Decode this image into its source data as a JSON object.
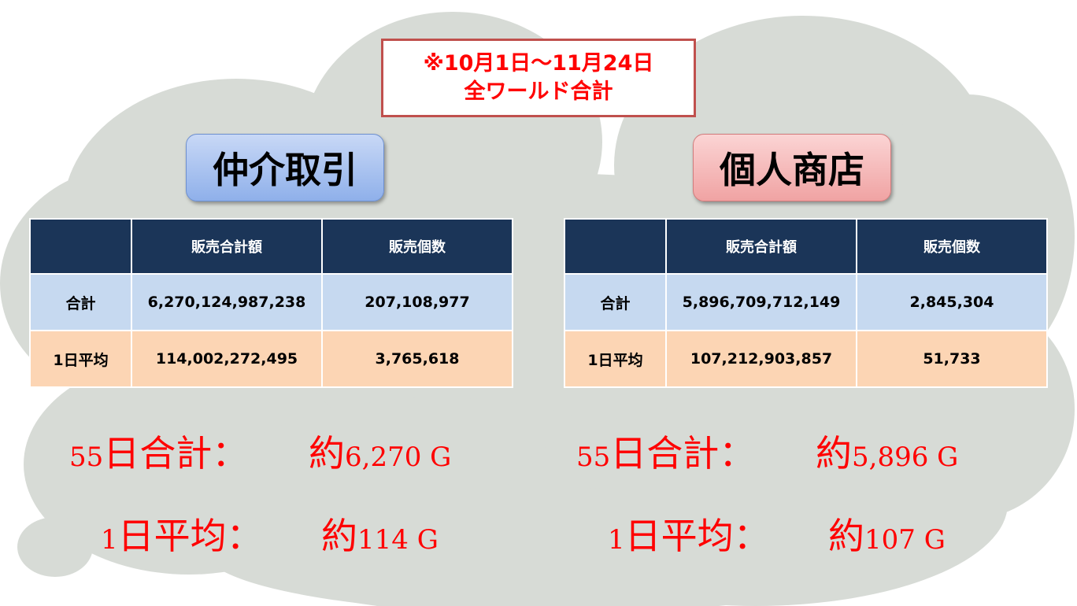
{
  "banner": {
    "line1": "※10月1日～11月24日",
    "line2": "全ワールド合計"
  },
  "columns": {
    "blank": "",
    "amount": "販売合計額",
    "count": "販売個数"
  },
  "rows": {
    "total": "合計",
    "daily": "1日平均"
  },
  "left": {
    "title": "仲介取引",
    "total_amount": "6,270,124,987,238",
    "total_count": "207,108,977",
    "daily_amount": "114,002,272,495",
    "daily_count": "3,765,618",
    "note1_prefix": "55",
    "note1_label": "日合計：",
    "note1_approx": "約",
    "note1_value": "6,270 G",
    "note2_prefix": "1",
    "note2_label": "日平均：",
    "note2_approx": "約",
    "note2_value": "114 G"
  },
  "right": {
    "title": "個人商店",
    "total_amount": "5,896,709,712,149",
    "total_count": "2,845,304",
    "daily_amount": "107,212,903,857",
    "daily_count": "51,733",
    "note1_prefix": "55",
    "note1_label": "日合計：",
    "note1_approx": "約",
    "note1_value": "5,896 G",
    "note2_prefix": "1",
    "note2_label": "日平均：",
    "note2_approx": "約",
    "note2_value": "107 G"
  },
  "colors": {
    "cloud": "#d7dbd6",
    "header": "#1b3558",
    "total_row": "#c6d9f0",
    "daily_row": "#fcd5b4",
    "handwriting": "#ff0000",
    "banner_border": "#c0504d"
  }
}
